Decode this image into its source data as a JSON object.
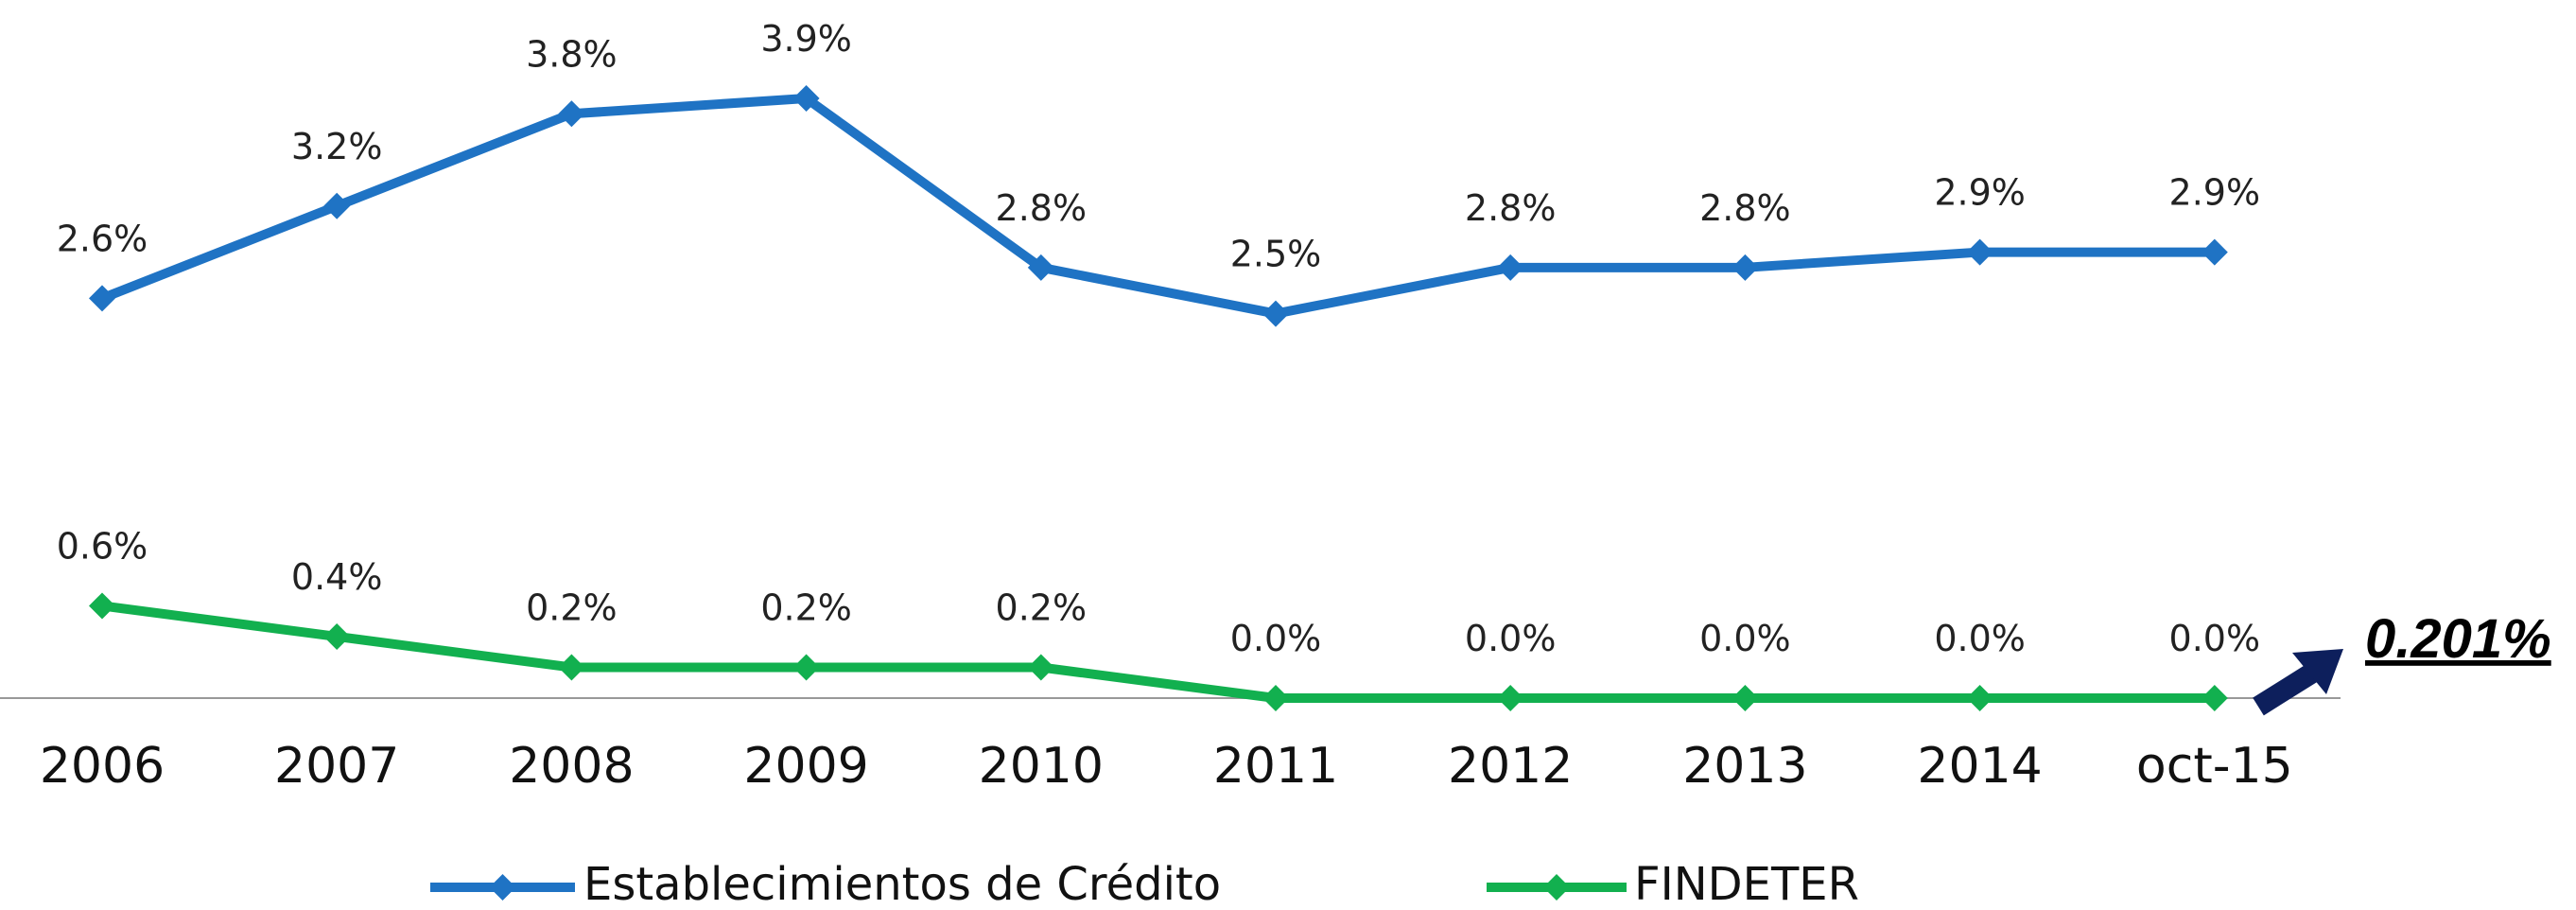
{
  "chart_data": {
    "type": "line",
    "categories": [
      "2006",
      "2007",
      "2008",
      "2009",
      "2010",
      "2011",
      "2012",
      "2013",
      "2014",
      "oct-15"
    ],
    "series": [
      {
        "name": "Establecimientos de Crédito",
        "color": "#1f73c4",
        "values": [
          2.6,
          3.2,
          3.8,
          3.9,
          2.8,
          2.5,
          2.8,
          2.8,
          2.9,
          2.9
        ],
        "value_labels": [
          "2.6%",
          "3.2%",
          "3.8%",
          "3.9%",
          "2.8%",
          "2.5%",
          "2.8%",
          "2.8%",
          "2.9%",
          "2.9%"
        ]
      },
      {
        "name": "FINDETER",
        "color": "#12b04f",
        "values": [
          0.6,
          0.4,
          0.2,
          0.2,
          0.2,
          0.0,
          0.0,
          0.0,
          0.0,
          0.0
        ],
        "value_labels": [
          "0.6%",
          "0.4%",
          "0.2%",
          "0.2%",
          "0.2%",
          "0.0%",
          "0.0%",
          "0.0%",
          "0.0%",
          "0.0%"
        ]
      }
    ],
    "annotation": "0.201%",
    "legend": "bottom"
  }
}
